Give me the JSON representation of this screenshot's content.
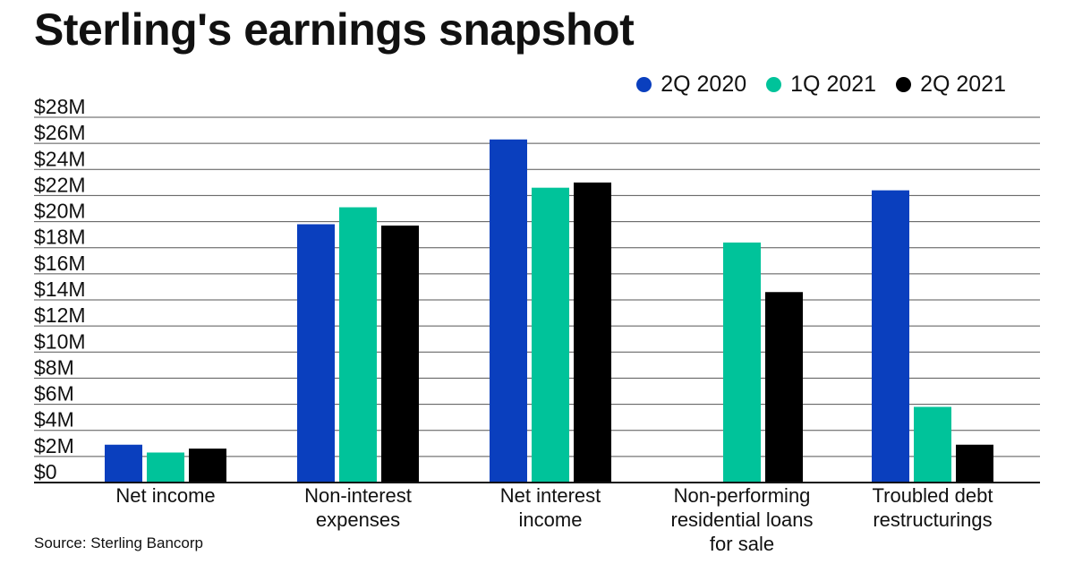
{
  "chart_data": {
    "type": "bar",
    "title": "Sterling's earnings snapshot",
    "categories": [
      "Net income",
      "Non-interest expenses",
      "Net interest income",
      "Non-performing residential loans for sale",
      "Troubled debt restructurings"
    ],
    "category_lines": [
      [
        "Net income"
      ],
      [
        "Non-interest",
        "expenses"
      ],
      [
        "Net interest",
        "income"
      ],
      [
        "Non-performing",
        "residential loans",
        "for sale"
      ],
      [
        "Troubled debt",
        "restructurings"
      ]
    ],
    "series": [
      {
        "name": "2Q 2020",
        "color": "#0a3fbe",
        "values": [
          2.9,
          19.8,
          26.3,
          0,
          22.4
        ]
      },
      {
        "name": "1Q 2021",
        "color": "#00c39a",
        "values": [
          2.3,
          21.1,
          22.6,
          18.4,
          5.8
        ]
      },
      {
        "name": "2Q 2021",
        "color": "#000000",
        "values": [
          2.6,
          19.7,
          23.0,
          14.6,
          2.9
        ]
      }
    ],
    "y_ticks": [
      0,
      2,
      4,
      6,
      8,
      10,
      12,
      14,
      16,
      18,
      20,
      22,
      24,
      26,
      28
    ],
    "y_tick_labels": [
      "$0",
      "$2M",
      "$4M",
      "$6M",
      "$8M",
      "$10M",
      "$12M",
      "$14M",
      "$16M",
      "$18M",
      "$20M",
      "$22M",
      "$24M",
      "$26M",
      "$28M"
    ],
    "ylim": [
      0,
      28
    ],
    "xlabel": "",
    "ylabel": "",
    "grid": true,
    "legend_position": "top-right",
    "source": "Source: Sterling Bancorp"
  }
}
